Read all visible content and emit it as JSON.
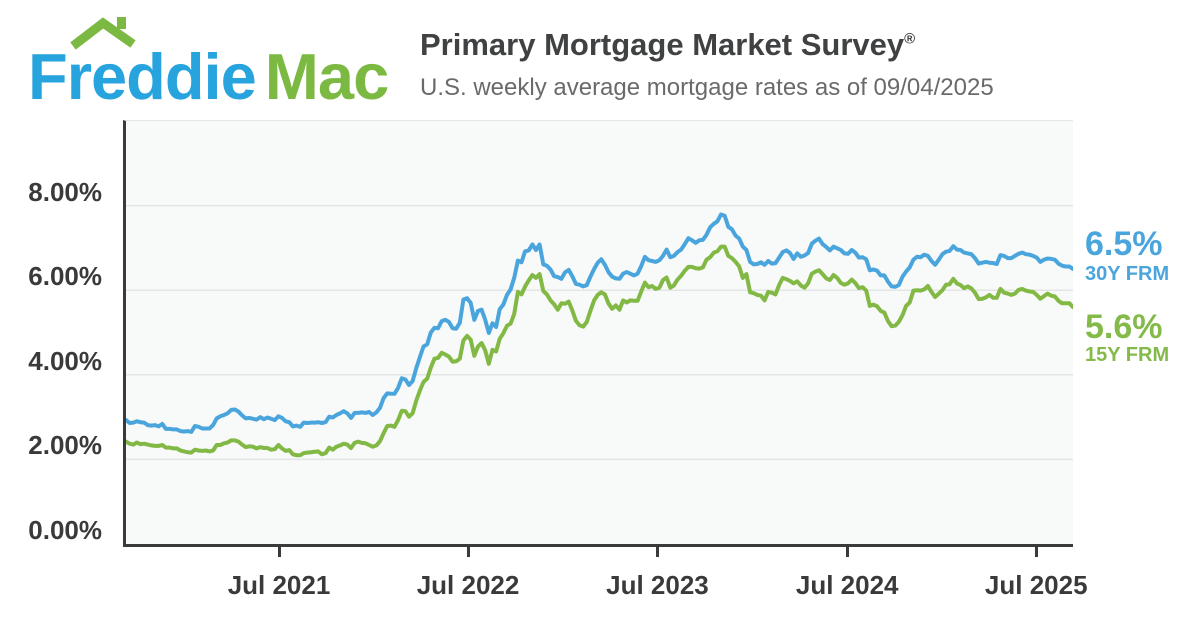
{
  "logo": {
    "word1": "Freddie",
    "word2": "Mac",
    "roof_icon_color": "#7CB942"
  },
  "header": {
    "title": "Primary Mortgage Market Survey",
    "registered": "®",
    "subtitle": "U.S. weekly average mortgage rates as of 09/04/2025"
  },
  "colors": {
    "logo_blue": "#27A3DE",
    "logo_green": "#7CB942",
    "line_30y": "#4AA5DD",
    "line_15y": "#82B844",
    "axis": "#3A3A3A",
    "gridline": "#E4E6E6",
    "plot_background": "#F8F9F9",
    "title_text": "#3F4142",
    "subtitle_text": "#696A6C"
  },
  "chart_data": {
    "type": "line",
    "frequency": "weekly",
    "x_start": "2020-09-03",
    "x_end": "2025-09-04",
    "ylim": [
      0,
      10
    ],
    "grid": "horizontal-only",
    "y_ticks": [
      {
        "value": 0,
        "label": "0.00%"
      },
      {
        "value": 2,
        "label": "2.00%"
      },
      {
        "value": 4,
        "label": "4.00%"
      },
      {
        "value": 6,
        "label": "6.00%"
      },
      {
        "value": 8,
        "label": "8.00%"
      }
    ],
    "x_ticks": [
      {
        "label": "Jul 2021",
        "week_index": 43.0
      },
      {
        "label": "Jul 2022",
        "week_index": 95.1
      },
      {
        "label": "Jul 2023",
        "week_index": 147.3
      },
      {
        "label": "Jul 2024",
        "week_index": 199.6
      },
      {
        "label": "Jul 2025",
        "week_index": 251.7
      }
    ],
    "series": [
      {
        "name": "30Y FRM",
        "latest_label": "6.5%",
        "latest_value": 6.5,
        "color": "#4AA5DD",
        "values": [
          2.93,
          2.86,
          2.87,
          2.9,
          2.88,
          2.87,
          2.81,
          2.8,
          2.81,
          2.78,
          2.84,
          2.72,
          2.72,
          2.71,
          2.71,
          2.67,
          2.66,
          2.67,
          2.65,
          2.79,
          2.77,
          2.73,
          2.73,
          2.73,
          2.81,
          2.97,
          3.02,
          3.05,
          3.09,
          3.17,
          3.18,
          3.13,
          3.04,
          2.97,
          2.98,
          2.96,
          2.94,
          3.0,
          2.95,
          2.99,
          2.96,
          2.93,
          3.02,
          2.98,
          2.9,
          2.88,
          2.78,
          2.8,
          2.77,
          2.87,
          2.86,
          2.87,
          2.87,
          2.88,
          2.86,
          2.88,
          3.01,
          2.99,
          3.05,
          3.09,
          3.14,
          3.09,
          2.98,
          3.1,
          3.1,
          3.11,
          3.1,
          3.12,
          3.05,
          3.11,
          3.22,
          3.45,
          3.56,
          3.55,
          3.55,
          3.69,
          3.92,
          3.89,
          3.76,
          3.85,
          4.16,
          4.42,
          4.67,
          4.72,
          5.0,
          5.11,
          5.1,
          5.27,
          5.3,
          5.25,
          5.1,
          5.09,
          5.23,
          5.78,
          5.81,
          5.7,
          5.3,
          5.51,
          5.54,
          5.3,
          4.99,
          5.22,
          5.13,
          5.55,
          5.66,
          5.89,
          6.02,
          6.29,
          6.7,
          6.66,
          6.92,
          6.94,
          7.08,
          6.95,
          7.08,
          6.61,
          6.58,
          6.49,
          6.33,
          6.31,
          6.27,
          6.42,
          6.48,
          6.33,
          6.15,
          6.13,
          6.09,
          6.12,
          6.32,
          6.5,
          6.65,
          6.73,
          6.6,
          6.42,
          6.32,
          6.28,
          6.27,
          6.39,
          6.43,
          6.39,
          6.35,
          6.39,
          6.57,
          6.79,
          6.71,
          6.69,
          6.67,
          6.71,
          6.81,
          6.96,
          6.78,
          6.81,
          6.9,
          6.96,
          7.09,
          7.23,
          7.18,
          7.12,
          7.18,
          7.19,
          7.31,
          7.49,
          7.57,
          7.63,
          7.79,
          7.76,
          7.5,
          7.44,
          7.29,
          7.22,
          7.03,
          6.95,
          6.67,
          6.61,
          6.62,
          6.66,
          6.6,
          6.69,
          6.63,
          6.64,
          6.77,
          6.9,
          6.94,
          6.88,
          6.74,
          6.87,
          6.79,
          6.82,
          6.88,
          7.1,
          7.17,
          7.22,
          7.09,
          7.02,
          6.94,
          7.03,
          6.99,
          6.95,
          6.87,
          6.86,
          6.95,
          6.89,
          6.77,
          6.78,
          6.73,
          6.47,
          6.49,
          6.46,
          6.35,
          6.35,
          6.2,
          6.09,
          6.08,
          6.12,
          6.32,
          6.44,
          6.54,
          6.72,
          6.79,
          6.78,
          6.84,
          6.81,
          6.69,
          6.6,
          6.72,
          6.85,
          6.91,
          6.93,
          7.04,
          6.96,
          6.95,
          6.89,
          6.87,
          6.85,
          6.76,
          6.63,
          6.65,
          6.67,
          6.65,
          6.64,
          6.62,
          6.83,
          6.81,
          6.76,
          6.76,
          6.81,
          6.86,
          6.89,
          6.85,
          6.84,
          6.81,
          6.77,
          6.67,
          6.72,
          6.75,
          6.74,
          6.72,
          6.63,
          6.58,
          6.56,
          6.56,
          6.5
        ]
      },
      {
        "name": "15Y FRM",
        "latest_label": "5.6%",
        "latest_value": 5.6,
        "color": "#82B844",
        "values": [
          2.42,
          2.37,
          2.35,
          2.4,
          2.36,
          2.37,
          2.35,
          2.33,
          2.32,
          2.32,
          2.34,
          2.28,
          2.28,
          2.26,
          2.26,
          2.21,
          2.19,
          2.17,
          2.16,
          2.23,
          2.21,
          2.2,
          2.21,
          2.19,
          2.21,
          2.34,
          2.34,
          2.38,
          2.4,
          2.45,
          2.45,
          2.42,
          2.35,
          2.29,
          2.31,
          2.3,
          2.26,
          2.29,
          2.27,
          2.27,
          2.23,
          2.24,
          2.34,
          2.26,
          2.2,
          2.22,
          2.12,
          2.1,
          2.1,
          2.15,
          2.16,
          2.17,
          2.18,
          2.19,
          2.12,
          2.15,
          2.28,
          2.23,
          2.3,
          2.33,
          2.37,
          2.35,
          2.27,
          2.39,
          2.42,
          2.39,
          2.38,
          2.34,
          2.3,
          2.33,
          2.43,
          2.62,
          2.79,
          2.8,
          2.77,
          2.93,
          3.15,
          3.14,
          3.01,
          3.09,
          3.39,
          3.63,
          3.83,
          3.91,
          4.17,
          4.38,
          4.4,
          4.52,
          4.48,
          4.43,
          4.31,
          4.32,
          4.38,
          4.81,
          4.92,
          4.83,
          4.45,
          4.67,
          4.75,
          4.58,
          4.26,
          4.59,
          4.55,
          4.85,
          4.98,
          5.16,
          5.21,
          5.44,
          5.96,
          5.9,
          6.09,
          6.23,
          6.36,
          6.29,
          6.38,
          5.98,
          5.9,
          5.76,
          5.67,
          5.54,
          5.69,
          5.68,
          5.73,
          5.52,
          5.28,
          5.17,
          5.14,
          5.25,
          5.51,
          5.76,
          5.89,
          5.95,
          5.9,
          5.68,
          5.56,
          5.64,
          5.54,
          5.76,
          5.71,
          5.76,
          5.75,
          5.75,
          5.97,
          6.18,
          6.07,
          6.1,
          6.03,
          6.06,
          6.24,
          6.3,
          6.06,
          6.11,
          6.25,
          6.34,
          6.46,
          6.55,
          6.55,
          6.52,
          6.51,
          6.54,
          6.72,
          6.78,
          6.89,
          6.92,
          7.03,
          7.03,
          6.81,
          6.76,
          6.67,
          6.56,
          6.29,
          6.38,
          5.95,
          5.93,
          5.89,
          5.87,
          5.76,
          5.96,
          5.94,
          5.9,
          6.12,
          6.29,
          6.26,
          6.22,
          6.16,
          6.21,
          6.11,
          6.06,
          6.16,
          6.39,
          6.44,
          6.47,
          6.38,
          6.28,
          6.24,
          6.36,
          6.29,
          6.17,
          6.13,
          6.16,
          6.25,
          6.17,
          6.05,
          6.07,
          5.99,
          5.63,
          5.66,
          5.62,
          5.51,
          5.47,
          5.27,
          5.15,
          5.16,
          5.25,
          5.41,
          5.63,
          5.71,
          5.99,
          6.0,
          5.99,
          6.02,
          6.1,
          5.96,
          5.84,
          5.92,
          6.0,
          6.13,
          6.14,
          6.27,
          6.16,
          6.12,
          6.05,
          6.09,
          6.04,
          5.94,
          5.79,
          5.8,
          5.83,
          5.89,
          5.82,
          5.82,
          6.03,
          5.94,
          5.92,
          5.89,
          5.92,
          6.01,
          6.03,
          5.99,
          5.97,
          5.96,
          5.89,
          5.8,
          5.86,
          5.92,
          5.87,
          5.85,
          5.75,
          5.69,
          5.69,
          5.69,
          5.6
        ]
      }
    ]
  }
}
